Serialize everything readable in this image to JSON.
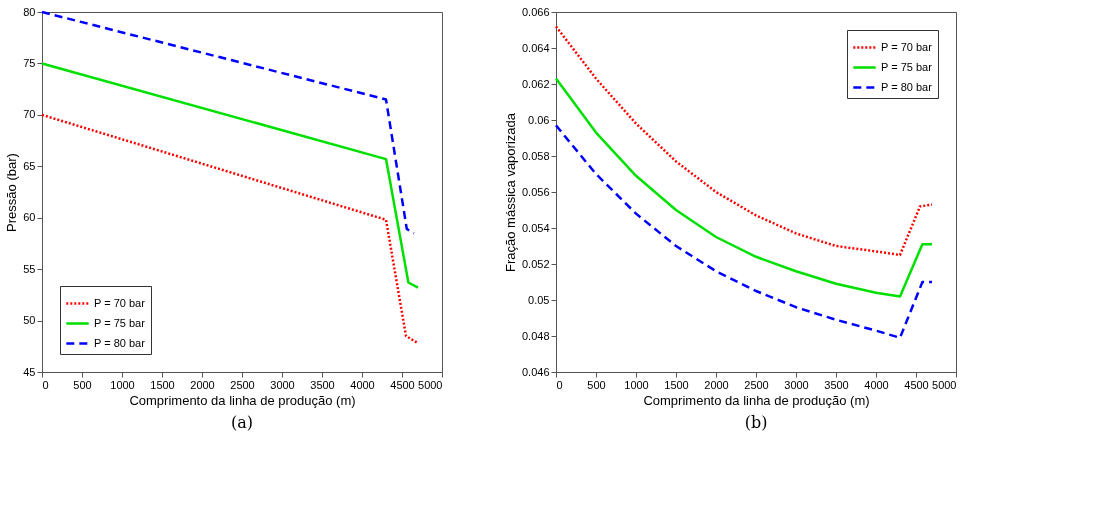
{
  "chart_data": [
    {
      "type": "line",
      "title": "(a)",
      "xlabel": "Comprimento da linha de produção (m)",
      "ylabel": "Pressão (bar)",
      "xlim": [
        0,
        5000
      ],
      "xticks": [
        0,
        500,
        1000,
        1500,
        2000,
        2500,
        3000,
        3500,
        4000,
        4500,
        5000
      ],
      "ylim": [
        45,
        80
      ],
      "yticks": [
        45,
        50,
        55,
        60,
        65,
        70,
        75,
        80
      ],
      "grid": false,
      "legend": "bottom left",
      "series": [
        {
          "name": "P = 70 bar",
          "color": "#ff0000",
          "line_style": "dotted",
          "x": [
            0,
            4300,
            4550,
            4700
          ],
          "values": [
            70,
            59.8,
            48.5,
            47.8
          ]
        },
        {
          "name": "P = 75 bar",
          "color": "#00e000",
          "line_style": "solid",
          "x": [
            0,
            4300,
            4580,
            4700
          ],
          "values": [
            75,
            65.7,
            53.7,
            53.2
          ]
        },
        {
          "name": "P = 80 bar",
          "color": "#0000ff",
          "line_style": "dashed",
          "x": [
            0,
            4300,
            4560,
            4650
          ],
          "values": [
            80,
            71.5,
            58.9,
            58.5
          ]
        }
      ]
    },
    {
      "type": "line",
      "title": "(b)",
      "xlabel": "Comprimento da linha de produção (m)",
      "ylabel": "Fração mássica vaporizada",
      "xlim": [
        0,
        5000
      ],
      "xticks": [
        0,
        500,
        1000,
        1500,
        2000,
        2500,
        3000,
        3500,
        4000,
        4500,
        5000
      ],
      "ylim": [
        0.046,
        0.066
      ],
      "yticks": [
        0.046,
        0.048,
        0.05,
        0.052,
        0.054,
        0.056,
        0.058,
        0.06,
        0.062,
        0.064,
        0.066
      ],
      "grid": false,
      "legend": "top right",
      "series": [
        {
          "name": "P = 70 bar",
          "color": "#ff0000",
          "line_style": "dotted",
          "x": [
            0,
            500,
            1000,
            1500,
            2000,
            2500,
            3000,
            3500,
            4000,
            4300,
            4550,
            4700
          ],
          "values": [
            0.0652,
            0.0623,
            0.0598,
            0.0577,
            0.056,
            0.0547,
            0.0537,
            0.053,
            0.0527,
            0.0525,
            0.0552,
            0.0553
          ]
        },
        {
          "name": "P = 75 bar",
          "color": "#00e000",
          "line_style": "solid",
          "x": [
            0,
            500,
            1000,
            1500,
            2000,
            2500,
            3000,
            3500,
            4000,
            4300,
            4580,
            4700
          ],
          "values": [
            0.0623,
            0.0593,
            0.0569,
            0.055,
            0.0535,
            0.0524,
            0.0516,
            0.0509,
            0.0504,
            0.0502,
            0.0531,
            0.0531
          ]
        },
        {
          "name": "P = 80 bar",
          "color": "#0000ff",
          "line_style": "dashed",
          "x": [
            0,
            500,
            1000,
            1500,
            2000,
            2500,
            3000,
            3500,
            4000,
            4300,
            4580,
            4700
          ],
          "values": [
            0.0597,
            0.057,
            0.0548,
            0.053,
            0.0516,
            0.0505,
            0.0496,
            0.0489,
            0.0483,
            0.0479,
            0.051,
            0.051
          ]
        }
      ]
    }
  ]
}
